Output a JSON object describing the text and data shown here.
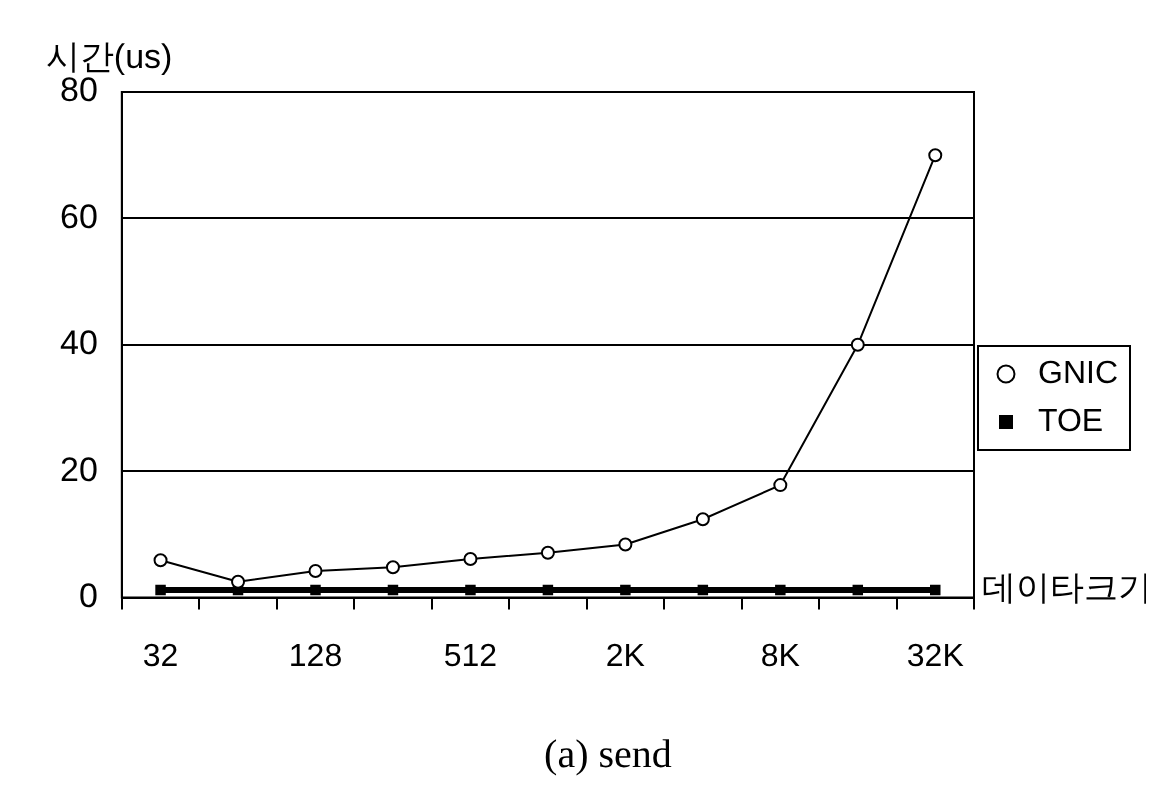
{
  "chart_data": {
    "type": "line",
    "ylabel": "시간(us)",
    "xlabel": "데이타크기",
    "annotations": [
      "(a) send"
    ],
    "categories": [
      "32",
      null,
      "128",
      null,
      "512",
      null,
      "2K",
      null,
      "8K",
      null,
      "32K"
    ],
    "series": [
      {
        "name": "GNIC",
        "color": "#000000",
        "marker": "circle",
        "values": [
          5.9,
          2.5,
          4.2,
          4.8,
          6.1,
          7.1,
          8.4,
          12.4,
          17.8,
          40,
          70
        ]
      },
      {
        "name": "TOE",
        "color": "#000000",
        "marker": "square",
        "values": [
          1.2,
          1.2,
          1.2,
          1.2,
          1.2,
          1.2,
          1.2,
          1.2,
          1.2,
          1.2,
          1.2
        ]
      }
    ],
    "ylim": [
      0,
      80
    ],
    "yticks": [
      0,
      20,
      40,
      60,
      80
    ],
    "grid": "y",
    "legend": "right",
    "line_style": "solid"
  }
}
